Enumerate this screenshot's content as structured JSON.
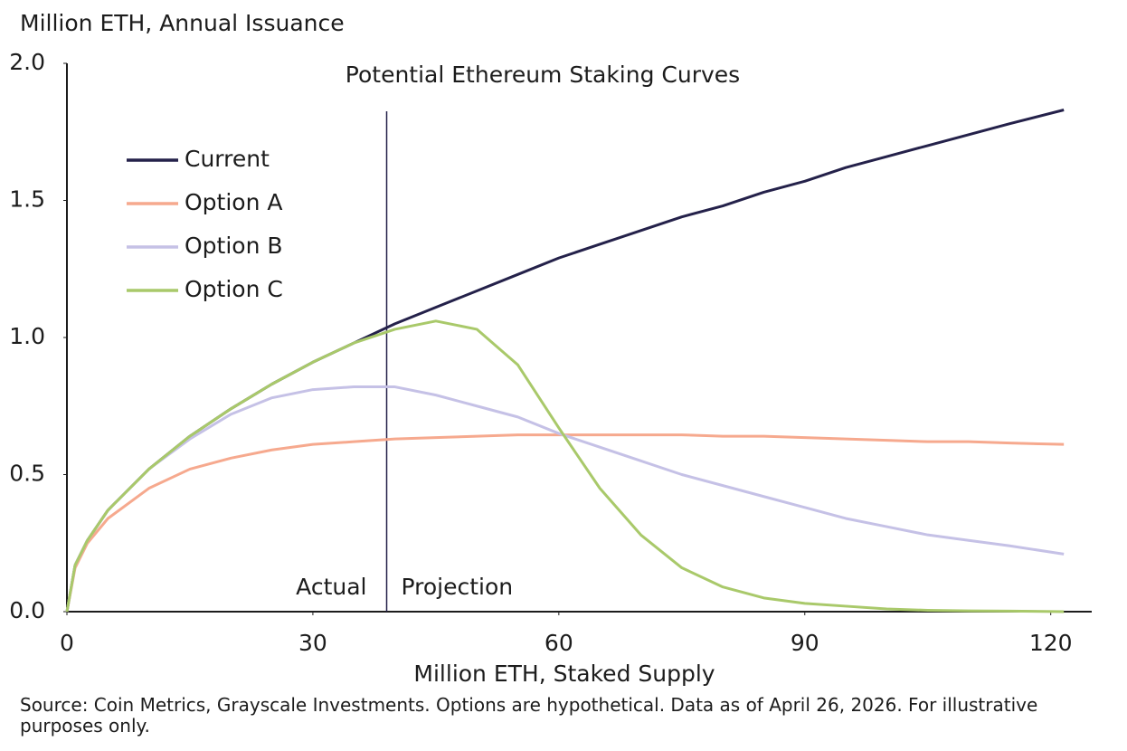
{
  "chart_data": {
    "type": "line",
    "title": "Potential Ethereum Staking Curves",
    "y_label": "Million ETH, Annual Issuance",
    "x_label": "Million ETH, Staked Supply",
    "source": "Source: Coin Metrics,  Grayscale Investments. Options are hypothetical. Data as of April 26, 2026. For illustrative purposes only.",
    "annotations": {
      "divider_x": 39,
      "left_label": "Actual",
      "right_label": "Projection"
    },
    "x": [
      0,
      1,
      2.5,
      5,
      10,
      15,
      20,
      25,
      30,
      35,
      40,
      45,
      50,
      55,
      60,
      65,
      70,
      75,
      80,
      85,
      90,
      95,
      100,
      105,
      110,
      115,
      121.6
    ],
    "series": [
      {
        "name": "Current",
        "color": "#24214a",
        "values": [
          0,
          0.17,
          0.26,
          0.37,
          0.52,
          0.64,
          0.74,
          0.83,
          0.91,
          0.98,
          1.05,
          1.11,
          1.17,
          1.23,
          1.29,
          1.34,
          1.39,
          1.44,
          1.48,
          1.53,
          1.57,
          1.62,
          1.66,
          1.7,
          1.74,
          1.78,
          1.83
        ]
      },
      {
        "name": "Option A",
        "color": "#f6a98e",
        "values": [
          0,
          0.16,
          0.25,
          0.34,
          0.45,
          0.52,
          0.56,
          0.59,
          0.61,
          0.62,
          0.63,
          0.635,
          0.64,
          0.645,
          0.645,
          0.645,
          0.645,
          0.645,
          0.64,
          0.64,
          0.635,
          0.63,
          0.625,
          0.62,
          0.62,
          0.615,
          0.61
        ]
      },
      {
        "name": "Option B",
        "color": "#c5c1e6",
        "values": [
          0,
          0.17,
          0.26,
          0.37,
          0.52,
          0.63,
          0.72,
          0.78,
          0.81,
          0.82,
          0.82,
          0.79,
          0.75,
          0.71,
          0.65,
          0.6,
          0.55,
          0.5,
          0.46,
          0.42,
          0.38,
          0.34,
          0.31,
          0.28,
          0.26,
          0.24,
          0.21
        ]
      },
      {
        "name": "Option C",
        "color": "#a9c96a",
        "values": [
          0,
          0.17,
          0.26,
          0.37,
          0.52,
          0.64,
          0.74,
          0.83,
          0.91,
          0.98,
          1.03,
          1.06,
          1.03,
          0.9,
          0.67,
          0.45,
          0.28,
          0.16,
          0.09,
          0.05,
          0.03,
          0.02,
          0.01,
          0.005,
          0.003,
          0.002,
          0
        ]
      }
    ],
    "xlim": [
      0,
      125
    ],
    "xticks": [
      0,
      30,
      60,
      90,
      120
    ],
    "ylim": [
      0,
      2
    ],
    "yticks": [
      {
        "value": 0,
        "label": "0.0"
      },
      0.5,
      {
        "value": 1,
        "label": "1.0"
      },
      1.5,
      {
        "value": 2,
        "label": "2.0"
      }
    ],
    "grid": false,
    "legend": "upper left"
  }
}
